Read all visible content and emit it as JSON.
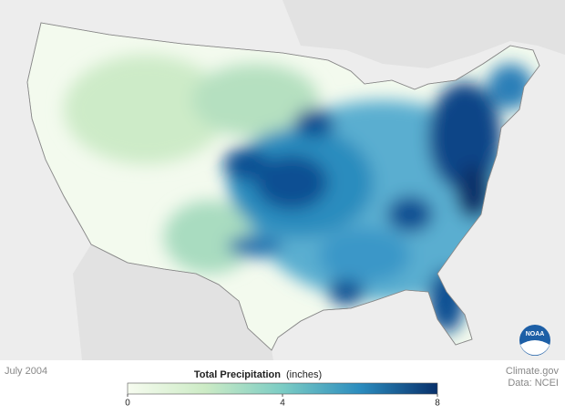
{
  "date": "July 2004",
  "legend": {
    "title": "Total Precipitation",
    "units": "(inches)",
    "range": [
      0,
      8
    ],
    "ticks": [
      0,
      4,
      8
    ],
    "colors": [
      "#f7fcf0",
      "#ccebc5",
      "#7bccc4",
      "#2b8cbe",
      "#08306b"
    ]
  },
  "credits": [
    "Climate.gov",
    "Data: NCEI"
  ],
  "logo": "NOAA"
}
